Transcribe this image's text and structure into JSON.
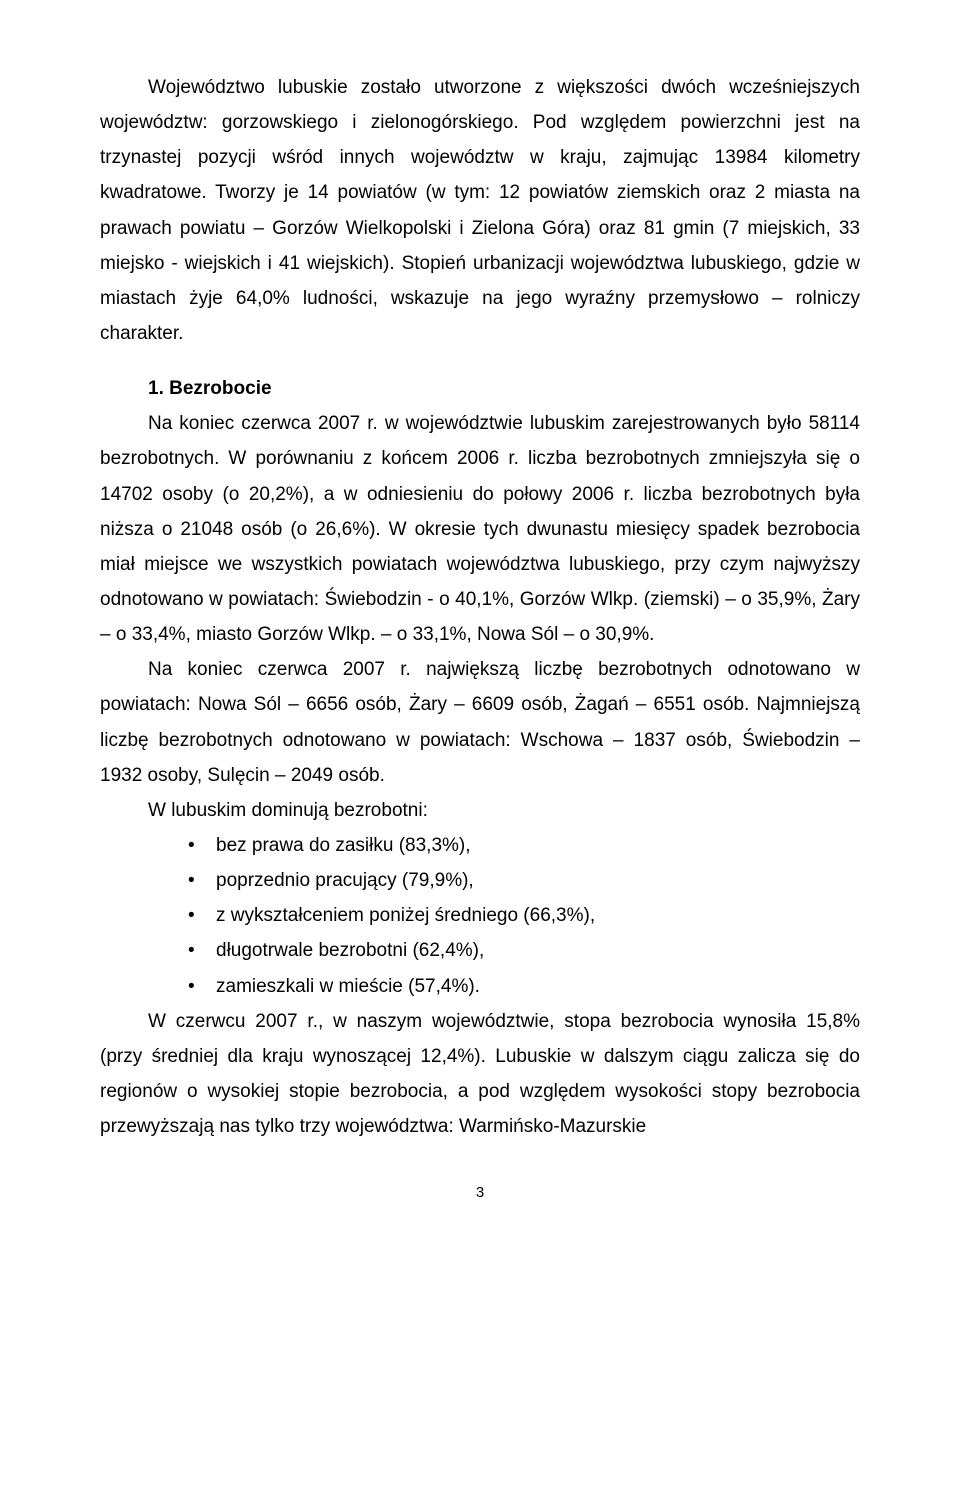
{
  "colors": {
    "text": "#000000",
    "background": "#ffffff"
  },
  "typography": {
    "body_fontsize_pt": 14,
    "body_line_height": 1.85,
    "font_family": "Arial",
    "heading_weight": "bold"
  },
  "paragraphs": {
    "p1": "Województwo lubuskie zostało utworzone z większości dwóch wcześniejszych województw: gorzowskiego i zielonogórskiego. Pod względem powierzchni jest na trzynastej pozycji wśród innych województw w kraju, zajmując 13984 kilometry kwadratowe. Tworzy je 14 powiatów (w tym: 12 powiatów ziemskich oraz 2 miasta na prawach powiatu – Gorzów Wielkopolski i Zielona Góra) oraz 81 gmin (7 miejskich, 33 miejsko - wiejskich i 41 wiejskich). Stopień urbanizacji województwa lubuskiego, gdzie w miastach żyje 64,0% ludności, wskazuje na jego wyraźny przemysłowo – rolniczy charakter.",
    "heading": "1. Bezrobocie",
    "p2": "Na koniec czerwca 2007 r. w województwie lubuskim zarejestrowanych było 58114 bezrobotnych. W porównaniu z końcem 2006 r. liczba bezrobotnych zmniejszyła się o 14702 osoby (o 20,2%), a w odniesieniu do połowy 2006 r. liczba bezrobotnych była niższa o 21048 osób (o 26,6%). W okresie tych dwunastu miesięcy spadek bezrobocia miał miejsce we wszystkich powiatach województwa lubuskiego, przy czym najwyższy odnotowano w powiatach: Świebodzin - o 40,1%, Gorzów Wlkp. (ziemski) – o 35,9%, Żary – o 33,4%, miasto Gorzów Wlkp. – o 33,1%, Nowa Sól – o 30,9%.",
    "p3": "Na koniec czerwca 2007 r. największą liczbę bezrobotnych odnotowano w powiatach: Nowa Sól – 6656 osób, Żary – 6609 osób, Żagań – 6551 osób. Najmniejszą liczbę bezrobotnych odnotowano w powiatach: Wschowa – 1837 osób, Świebodzin – 1932 osoby, Sulęcin – 2049 osób.",
    "p4": "W lubuskim dominują bezrobotni:",
    "p5": "W czerwcu 2007 r., w naszym województwie, stopa bezrobocia wynosiła 15,8% (przy średniej dla kraju wynoszącej 12,4%). Lubuskie w dalszym ciągu zalicza się do regionów o wysokiej stopie bezrobocia, a pod względem wysokości stopy bezrobocia przewyższają nas tylko trzy województwa: Warmińsko-Mazurskie"
  },
  "bullets": [
    "bez prawa do zasiłku (83,3%),",
    "poprzednio pracujący (79,9%),",
    "z wykształceniem poniżej średniego (66,3%),",
    "długotrwale bezrobotni (62,4%),",
    "zamieszkali w mieście (57,4%)."
  ],
  "page_number": "3"
}
